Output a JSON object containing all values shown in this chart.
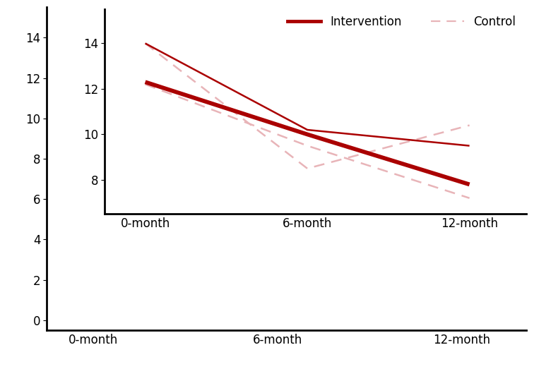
{
  "x_labels": [
    "0-month",
    "6-month",
    "12-month"
  ],
  "x_positions": [
    0,
    1,
    2
  ],
  "line1_intervention": [
    14.0,
    10.2,
    9.5
  ],
  "line1_control": [
    14.0,
    8.5,
    10.4
  ],
  "line2_intervention": [
    12.3,
    10.0,
    7.8
  ],
  "line2_control": [
    12.2,
    9.5,
    7.2
  ],
  "intervention_color": "#AA0000",
  "control_color": "#E8B4B8",
  "outer_yticks": [
    0,
    2,
    4,
    6,
    8,
    10,
    12,
    14
  ],
  "outer_ylim": [
    -0.5,
    15.5
  ],
  "outer_xlim": [
    -0.25,
    2.35
  ],
  "inner_yticks": [
    8,
    10,
    12,
    14
  ],
  "inner_ylim": [
    6.5,
    15.5
  ],
  "inner_xlim": [
    -0.25,
    2.35
  ],
  "legend1_label_intervention": "Intervention",
  "legend1_label_control": "Control",
  "legend2_label_intervention": "Intervention",
  "legend2_label_control": "Control",
  "thin_lw": 1.8,
  "thick_lw": 4.2,
  "legend_thin_lw": 1.6,
  "legend_thick_lw": 3.5,
  "dash_pattern": [
    6,
    4
  ]
}
